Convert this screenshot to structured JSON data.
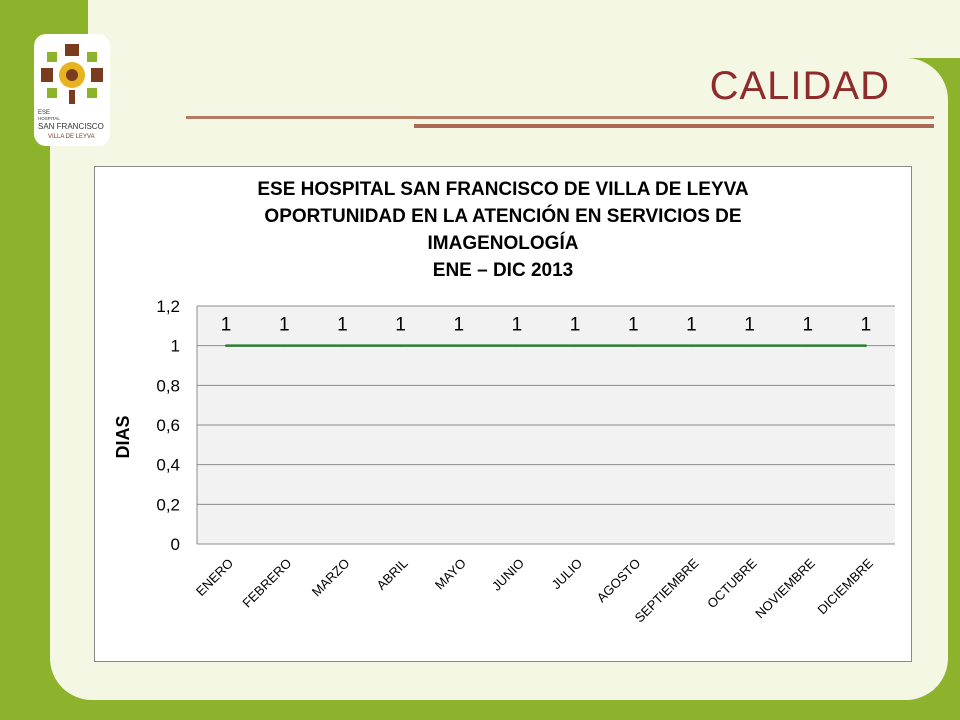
{
  "slide": {
    "title": "CALIDAD",
    "colors": {
      "green": "#8db32d",
      "panel": "#f4f7e4",
      "title": "#8e2b2b",
      "line": "#2e7d32"
    }
  },
  "logo": {
    "line1": "ESE",
    "line2": "HOSPITAL",
    "line3": "SAN FRANCISCO",
    "line4": "VILLA DE LEYVA"
  },
  "chart_data": {
    "type": "line",
    "title": [
      "ESE HOSPITAL SAN FRANCISCO DE VILLA DE LEYVA",
      "OPORTUNIDAD EN LA ATENCIÓN EN SERVICIOS DE",
      "IMAGENOLOGÍA",
      "ENE – DIC 2013"
    ],
    "ylabel": "DIAS",
    "xlabel": "",
    "categories": [
      "ENERO",
      "FEBRERO",
      "MARZO",
      "ABRIL",
      "MAYO",
      "JUNIO",
      "JULIO",
      "AGOSTO",
      "SEPTIEMBRE",
      "OCTUBRE",
      "NOVIEMBRE",
      "DICIEMBRE"
    ],
    "series": [
      {
        "values": [
          1,
          1,
          1,
          1,
          1,
          1,
          1,
          1,
          1,
          1,
          1,
          1
        ],
        "color": "#2e7d32"
      }
    ],
    "data_labels": [
      "1",
      "1",
      "1",
      "1",
      "1",
      "1",
      "1",
      "1",
      "1",
      "1",
      "1",
      "1"
    ],
    "ylim": [
      0,
      1.2
    ],
    "y_ticks": [
      0,
      0.2,
      0.4,
      0.6,
      0.8,
      1,
      1.2
    ],
    "y_tick_labels": [
      "0",
      "0,2",
      "0,4",
      "0,6",
      "0,8",
      "1",
      "1,2"
    ],
    "grid": true,
    "legend": "none"
  }
}
